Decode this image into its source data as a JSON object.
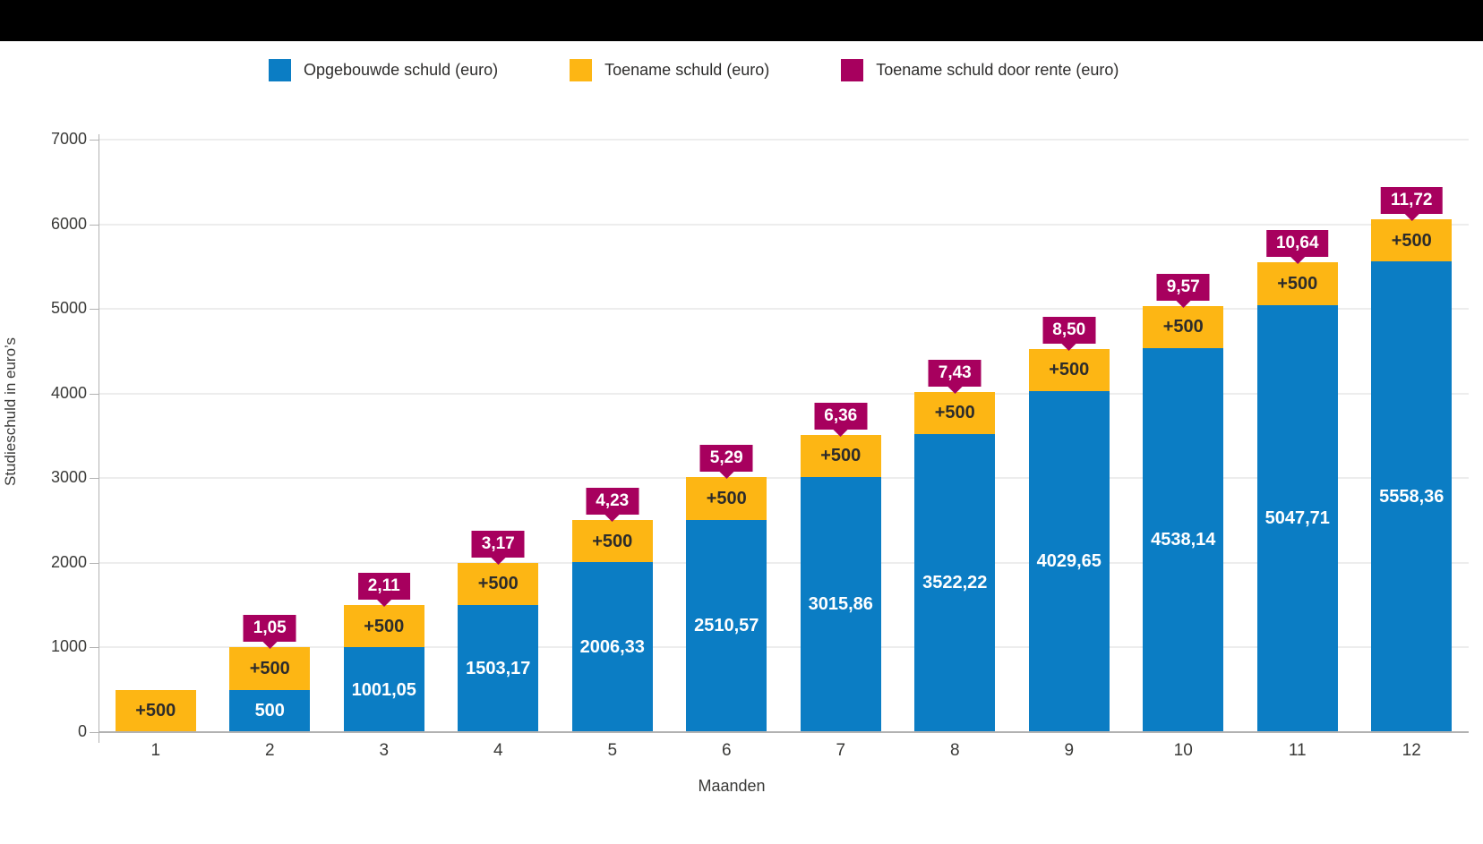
{
  "window": {
    "topbar_color": "#000000",
    "background": "#ffffff"
  },
  "legend": {
    "items": [
      {
        "label": "Opgebouwde schuld (euro)",
        "color": "#0b7dc4"
      },
      {
        "label": "Toename schuld (euro)",
        "color": "#fdb614"
      },
      {
        "label": "Toename schuld door rente (euro)",
        "color": "#a7005e"
      }
    ]
  },
  "chart_data": {
    "type": "bar",
    "stacked": true,
    "title": "",
    "xlabel": "Maanden",
    "ylabel": "Studieschuld in euro’s",
    "ylim": [
      0,
      7000
    ],
    "yticks": [
      0,
      1000,
      2000,
      3000,
      4000,
      5000,
      6000,
      7000
    ],
    "grid": true,
    "legend_position": "top",
    "categories": [
      "1",
      "2",
      "3",
      "4",
      "5",
      "6",
      "7",
      "8",
      "9",
      "10",
      "11",
      "12"
    ],
    "series": [
      {
        "name": "Opgebouwde schuld (euro)",
        "color": "#0b7dc4",
        "values": [
          0,
          500,
          1001.05,
          1503.17,
          2006.33,
          2510.57,
          3015.86,
          3522.22,
          4029.65,
          4538.14,
          5047.71,
          5558.36
        ],
        "labels": [
          "",
          "500",
          "1001,05",
          "1503,17",
          "2006,33",
          "2510,57",
          "3015,86",
          "3522,22",
          "4029,65",
          "4538,14",
          "5047,71",
          "5558,36"
        ]
      },
      {
        "name": "Toename schuld (euro)",
        "color": "#fdb614",
        "values": [
          500,
          500,
          500,
          500,
          500,
          500,
          500,
          500,
          500,
          500,
          500,
          500
        ],
        "labels": [
          "+500",
          "+500",
          "+500",
          "+500",
          "+500",
          "+500",
          "+500",
          "+500",
          "+500",
          "+500",
          "+500",
          "+500"
        ]
      },
      {
        "name": "Toename schuld door rente (euro)",
        "color": "#a7005e",
        "values": [
          0,
          1.05,
          2.11,
          3.17,
          4.23,
          5.29,
          6.36,
          7.43,
          8.5,
          9.57,
          10.64,
          11.72
        ],
        "labels": [
          "",
          "1,05",
          "2,11",
          "3,17",
          "4,23",
          "5,29",
          "6,36",
          "7,43",
          "8,50",
          "9,57",
          "10,64",
          "11,72"
        ]
      }
    ]
  }
}
